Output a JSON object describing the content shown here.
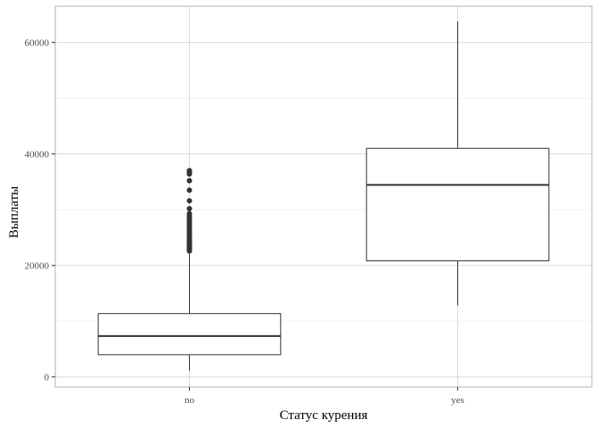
{
  "chart_data": {
    "type": "boxplot",
    "xlabel": "Статус курения",
    "ylabel": "Выплаты",
    "categories": [
      "no",
      "yes"
    ],
    "ylim": [
      -1800,
      66500
    ],
    "yticks": [
      0,
      20000,
      40000,
      60000
    ],
    "ytick_labels": [
      "0",
      "20000",
      "40000",
      "60000"
    ],
    "grid": true,
    "boxes": [
      {
        "category": "no",
        "whisker_low": 1122,
        "q1": 3986,
        "median": 7345,
        "q3": 11362,
        "whisker_high": 22400,
        "outliers": [
          22600,
          22800,
          23000,
          23200,
          23400,
          23600,
          23800,
          24000,
          24200,
          24500,
          24800,
          25100,
          25400,
          25700,
          26000,
          26300,
          26600,
          27000,
          27300,
          27700,
          28100,
          28500,
          28900,
          29300,
          30200,
          31600,
          33500,
          35200,
          36400,
          36800,
          37000
        ]
      },
      {
        "category": "yes",
        "whisker_low": 12829,
        "q1": 20826,
        "median": 34456,
        "q3": 41019,
        "whisker_high": 63770,
        "outliers": []
      }
    ]
  }
}
